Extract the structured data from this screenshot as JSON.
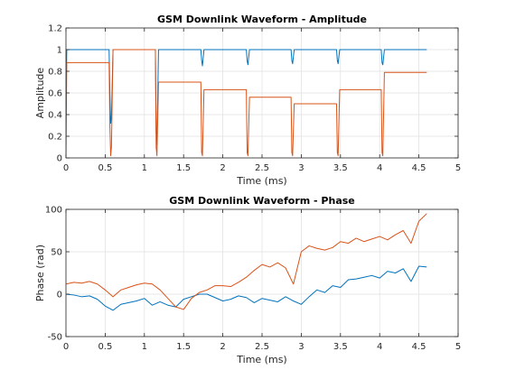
{
  "chart_data": [
    {
      "type": "line",
      "title": "GSM Downlink Waveform - Amplitude",
      "xlabel": "Time (ms)",
      "ylabel": "Amplitude",
      "xlim": [
        0,
        5
      ],
      "ylim": [
        0,
        1.2
      ],
      "xticks": [
        0,
        0.5,
        1,
        1.5,
        2,
        2.5,
        3,
        3.5,
        4,
        4.5,
        5
      ],
      "yticks": [
        0,
        0.2,
        0.4,
        0.6,
        0.8,
        1,
        1.2
      ],
      "xtick_labels": [
        "0",
        "0.5",
        "1",
        "1.5",
        "2",
        "2.5",
        "3",
        "3.5",
        "4",
        "4.5",
        "5"
      ],
      "ytick_labels": [
        "0",
        "0.2",
        "0.4",
        "0.6",
        "0.8",
        "1",
        "1.2"
      ],
      "grid": true,
      "series": [
        {
          "color": "#0072bd",
          "x": [
            0,
            0.01,
            0.02,
            0.55,
            0.56,
            0.57,
            0.58,
            0.6,
            1.14,
            1.15,
            1.16,
            1.18,
            1.72,
            1.73,
            1.74,
            1.76,
            2.3,
            2.31,
            2.32,
            2.34,
            2.87,
            2.88,
            2.89,
            2.91,
            3.45,
            3.46,
            3.47,
            3.49,
            4.02,
            4.03,
            4.04,
            4.06,
            4.6
          ],
          "y": [
            0.4,
            1,
            1,
            1,
            0.6,
            0.32,
            0.38,
            1,
            1,
            0.25,
            0.12,
            1,
            1,
            0.9,
            0.85,
            1,
            1,
            0.9,
            0.86,
            1,
            1,
            0.9,
            0.87,
            1,
            1,
            0.9,
            0.87,
            1,
            1,
            0.88,
            0.86,
            1,
            1
          ]
        },
        {
          "color": "#d95319",
          "x": [
            0,
            0.01,
            0.02,
            0.55,
            0.56,
            0.57,
            0.58,
            0.6,
            1.14,
            1.15,
            1.16,
            1.18,
            1.72,
            1.73,
            1.74,
            1.76,
            2.3,
            2.31,
            2.32,
            2.34,
            2.87,
            2.88,
            2.89,
            2.91,
            3.45,
            3.46,
            3.47,
            3.49,
            4.02,
            4.03,
            4.04,
            4.06,
            4.6
          ],
          "y": [
            0,
            0.88,
            0.88,
            0.88,
            0.3,
            0.02,
            0.1,
            1,
            1,
            0.1,
            0.02,
            0.7,
            0.7,
            0.05,
            0.02,
            0.63,
            0.63,
            0.05,
            0.02,
            0.56,
            0.56,
            0.05,
            0.02,
            0.5,
            0.5,
            0.05,
            0.02,
            0.63,
            0.63,
            0.05,
            0.02,
            0.79,
            0.79
          ]
        }
      ]
    },
    {
      "type": "line",
      "title": "GSM Downlink Waveform - Phase",
      "xlabel": "Time (ms)",
      "ylabel": "Phase (rad)",
      "xlim": [
        0,
        5
      ],
      "ylim": [
        -50,
        100
      ],
      "xticks": [
        0,
        0.5,
        1,
        1.5,
        2,
        2.5,
        3,
        3.5,
        4,
        4.5,
        5
      ],
      "yticks": [
        -50,
        0,
        50,
        100
      ],
      "xtick_labels": [
        "0",
        "0.5",
        "1",
        "1.5",
        "2",
        "2.5",
        "3",
        "3.5",
        "4",
        "4.5",
        "5"
      ],
      "ytick_labels": [
        "-50",
        "0",
        "50",
        "100"
      ],
      "grid": true,
      "series": [
        {
          "color": "#0072bd",
          "x": [
            0,
            0.1,
            0.2,
            0.3,
            0.4,
            0.5,
            0.6,
            0.7,
            0.8,
            0.9,
            1.0,
            1.1,
            1.2,
            1.3,
            1.4,
            1.5,
            1.6,
            1.7,
            1.8,
            1.9,
            2.0,
            2.1,
            2.2,
            2.3,
            2.4,
            2.5,
            2.6,
            2.7,
            2.8,
            2.9,
            3.0,
            3.1,
            3.2,
            3.3,
            3.4,
            3.5,
            3.6,
            3.7,
            3.8,
            3.9,
            4.0,
            4.1,
            4.2,
            4.3,
            4.4,
            4.5,
            4.6
          ],
          "y": [
            0,
            -1,
            -3,
            -2,
            -6,
            -14,
            -19,
            -12,
            -10,
            -8,
            -5,
            -13,
            -9,
            -13,
            -15,
            -6,
            -3,
            0,
            0,
            -4,
            -8,
            -6,
            -2,
            -4,
            -10,
            -5,
            -7,
            -9,
            -3,
            -8,
            -12,
            -3,
            5,
            2,
            10,
            8,
            17,
            18,
            20,
            22,
            19,
            27,
            25,
            30,
            15,
            33,
            32
          ]
        },
        {
          "color": "#d95319",
          "x": [
            0,
            0.1,
            0.2,
            0.3,
            0.4,
            0.5,
            0.6,
            0.7,
            0.8,
            0.9,
            1.0,
            1.1,
            1.2,
            1.3,
            1.4,
            1.5,
            1.6,
            1.7,
            1.8,
            1.9,
            2.0,
            2.1,
            2.2,
            2.3,
            2.4,
            2.5,
            2.6,
            2.7,
            2.8,
            2.9,
            3.0,
            3.1,
            3.2,
            3.3,
            3.4,
            3.5,
            3.6,
            3.7,
            3.8,
            3.9,
            4.0,
            4.1,
            4.2,
            4.3,
            4.4,
            4.5,
            4.6
          ],
          "y": [
            12,
            14,
            13,
            15,
            12,
            5,
            -3,
            5,
            8,
            11,
            13,
            12,
            5,
            -5,
            -15,
            -18,
            -5,
            2,
            5,
            10,
            10,
            9,
            14,
            20,
            28,
            35,
            32,
            37,
            31,
            12,
            50,
            57,
            54,
            52,
            55,
            62,
            60,
            66,
            62,
            65,
            68,
            64,
            70,
            75,
            60,
            86,
            95
          ]
        }
      ]
    }
  ]
}
